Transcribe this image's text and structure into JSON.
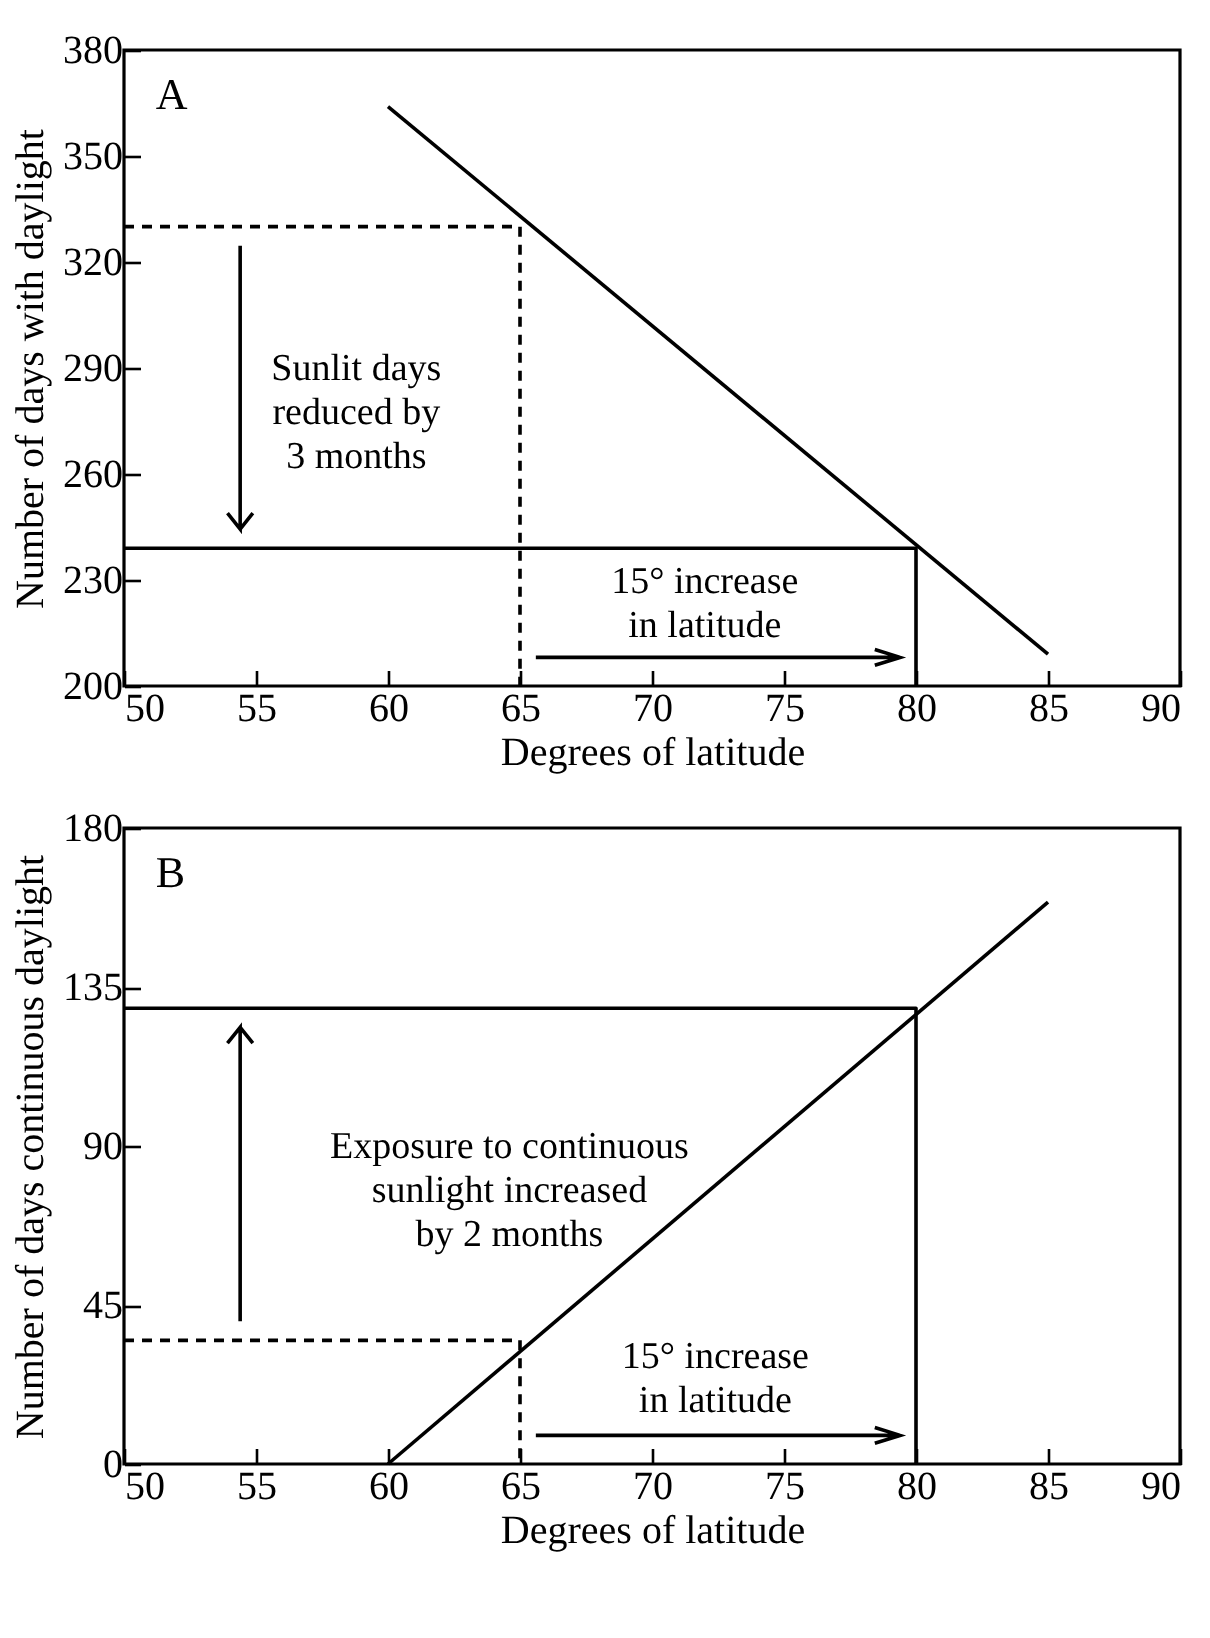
{
  "chart_data": [
    {
      "type": "line",
      "xlabel": "Degrees of latitude",
      "ylabel": "Number of days with daylight",
      "xlim": [
        50,
        90
      ],
      "xticks": [
        50,
        55,
        60,
        65,
        70,
        75,
        80,
        85,
        90
      ],
      "ylim": [
        200,
        380
      ],
      "yticks": [
        200,
        230,
        260,
        290,
        320,
        350,
        380
      ],
      "grid": false,
      "marker": "none",
      "annotations": [
        "A",
        "Sunlit days\nreduced by\n3 months",
        "15° increase\nin latitude"
      ],
      "series": [
        {
          "color": "#000000",
          "x": [
            60,
            85
          ],
          "values": [
            364,
            209
          ],
          "line_style": "solid"
        },
        {
          "color": "#000000",
          "x": [
            50,
            65,
            65
          ],
          "values": [
            330,
            330,
            200
          ],
          "line_style": "dashed"
        },
        {
          "color": "#000000",
          "x": [
            50,
            80,
            80
          ],
          "values": [
            239,
            239,
            200
          ],
          "line_style": "solid"
        }
      ]
    },
    {
      "type": "line",
      "xlabel": "Degrees of latitude",
      "ylabel": "Number of days continuous daylight",
      "xlim": [
        50,
        90
      ],
      "xticks": [
        50,
        55,
        60,
        65,
        70,
        75,
        80,
        85,
        90
      ],
      "ylim": [
        0,
        180
      ],
      "yticks": [
        0,
        45,
        90,
        135,
        180
      ],
      "grid": false,
      "marker": "none",
      "annotations": [
        "B",
        "Exposure to continuous\nsunlight increased\nby 2 months",
        "15° increase\nin latitude"
      ],
      "series": [
        {
          "color": "#000000",
          "x": [
            60,
            85
          ],
          "values": [
            0,
            159
          ],
          "line_style": "solid"
        },
        {
          "color": "#000000",
          "x": [
            50,
            65,
            65
          ],
          "values": [
            35,
            35,
            0
          ],
          "line_style": "dashed"
        },
        {
          "color": "#000000",
          "x": [
            50,
            80,
            80
          ],
          "values": [
            129,
            129,
            0
          ],
          "line_style": "solid"
        }
      ]
    }
  ]
}
